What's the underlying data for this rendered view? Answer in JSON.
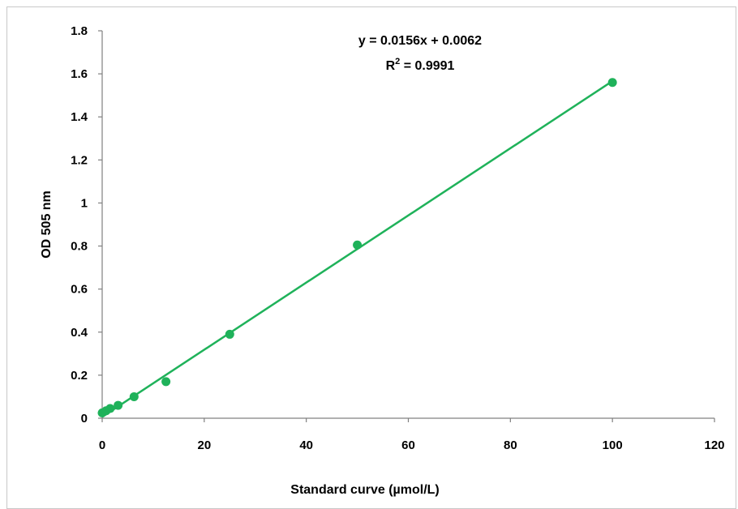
{
  "chart_data": {
    "type": "scatter",
    "title": "",
    "xlabel": "Standard curve (µmol/L)",
    "ylabel": "OD 505 nm",
    "xlim": [
      0,
      120
    ],
    "ylim": [
      0,
      1.8
    ],
    "x_ticks": [
      "0",
      "20",
      "40",
      "60",
      "80",
      "100",
      "120"
    ],
    "y_ticks": [
      "0",
      "0.2",
      "0.4",
      "0.6",
      "0.8",
      "1",
      "1.2",
      "1.4",
      "1.6",
      "1.8"
    ],
    "grid": false,
    "legend": "none",
    "series": [
      {
        "points": [
          {
            "x": 0,
            "y": 0.025
          },
          {
            "x": 0.78,
            "y": 0.035
          },
          {
            "x": 1.56,
            "y": 0.045
          },
          {
            "x": 3.125,
            "y": 0.06
          },
          {
            "x": 6.25,
            "y": 0.1
          },
          {
            "x": 12.5,
            "y": 0.17
          },
          {
            "x": 25,
            "y": 0.39
          },
          {
            "x": 50,
            "y": 0.805
          },
          {
            "x": 100,
            "y": 1.56
          }
        ],
        "color": "#1fb25a"
      }
    ],
    "trendline": {
      "slope": 0.0156,
      "intercept": 0.0062,
      "equation": "y = 0.0156x + 0.0062",
      "r2_prefix": "R",
      "r2_superscript": "2",
      "r2_suffix": " = 0.9991",
      "color": "#1fb25a"
    }
  }
}
